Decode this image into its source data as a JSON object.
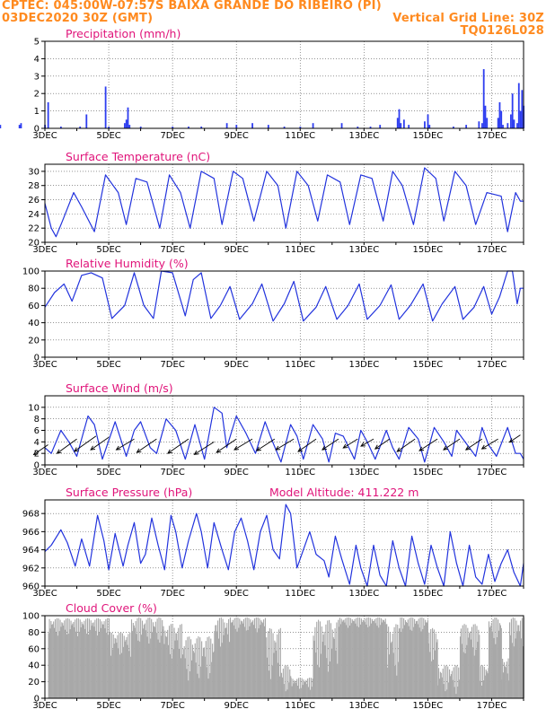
{
  "header": {
    "line1": "CPTEC:   045:00W-07:57S  BAIXA GRANDE DO RIBEIRO (PI)",
    "line2_left": "03DEC2020 30Z (GMT)",
    "line2_right": "Vertical Grid Line: 30Z",
    "line3_right": "TQ0126L028"
  },
  "colors": {
    "header": "#ff8a1f",
    "title": "#e0147a",
    "line": "#2233dd",
    "bar": "#2d3df0",
    "cloud": "#a8a8a8",
    "arrow": "#000000"
  },
  "x_ticks": [
    "3DEC",
    "5DEC",
    "7DEC",
    "9DEC",
    "11DEC",
    "13DEC",
    "15DEC",
    "17DEC"
  ],
  "chart_data": [
    {
      "type": "bar",
      "title": "Precipitation (mm/h)",
      "ylim": [
        0,
        5
      ],
      "yticks": [
        0,
        1,
        2,
        3,
        4,
        5
      ],
      "spikes": [
        [
          0.55,
          0.5
        ],
        [
          0.6,
          0.7
        ],
        [
          0.65,
          0.4
        ],
        [
          0.75,
          0.6
        ],
        [
          0.8,
          0.8
        ],
        [
          0.85,
          3.0
        ],
        [
          0.9,
          0.6
        ],
        [
          0.95,
          0.3
        ],
        [
          1.0,
          0.4
        ],
        [
          1.6,
          0.2
        ],
        [
          2.2,
          0.2
        ],
        [
          2.25,
          0.3
        ],
        [
          3.0,
          0.2
        ],
        [
          3.1,
          1.5
        ],
        [
          3.5,
          0.1
        ],
        [
          4.1,
          0.1
        ],
        [
          4.3,
          0.8
        ],
        [
          4.9,
          2.4
        ],
        [
          5.0,
          0.1
        ],
        [
          5.5,
          0.3
        ],
        [
          5.55,
          0.5
        ],
        [
          5.6,
          1.2
        ],
        [
          5.65,
          0.2
        ],
        [
          6.0,
          0.1
        ],
        [
          7.0,
          0.1
        ],
        [
          7.5,
          0.1
        ],
        [
          7.9,
          0.1
        ],
        [
          8.7,
          0.3
        ],
        [
          9.0,
          0.2
        ],
        [
          9.5,
          0.3
        ],
        [
          10.0,
          0.2
        ],
        [
          10.5,
          0.1
        ],
        [
          11.0,
          0.1
        ],
        [
          11.4,
          0.3
        ],
        [
          12.3,
          0.3
        ],
        [
          12.8,
          0.1
        ],
        [
          13.2,
          0.1
        ],
        [
          13.5,
          0.2
        ],
        [
          14.05,
          0.6
        ],
        [
          14.1,
          1.1
        ],
        [
          14.15,
          0.3
        ],
        [
          14.25,
          0.5
        ],
        [
          14.4,
          0.2
        ],
        [
          14.9,
          0.4
        ],
        [
          15.0,
          0.8
        ],
        [
          15.05,
          0.2
        ],
        [
          15.8,
          0.1
        ],
        [
          16.2,
          0.2
        ],
        [
          16.6,
          0.4
        ],
        [
          16.7,
          0.3
        ],
        [
          16.75,
          3.4
        ],
        [
          16.8,
          1.3
        ],
        [
          16.85,
          0.6
        ],
        [
          17.2,
          0.6
        ],
        [
          17.25,
          1.5
        ],
        [
          17.3,
          1.0
        ],
        [
          17.35,
          0.2
        ],
        [
          17.5,
          0.3
        ],
        [
          17.6,
          0.8
        ],
        [
          17.65,
          2.0
        ],
        [
          17.7,
          0.5
        ],
        [
          17.8,
          0.3
        ],
        [
          17.85,
          2.6
        ],
        [
          17.9,
          1.0
        ],
        [
          17.95,
          2.2
        ],
        [
          18.0,
          1.3
        ]
      ]
    },
    {
      "type": "line",
      "title": "Surface Temperature (nC)",
      "ylim": [
        20,
        31
      ],
      "yticks": [
        20,
        22,
        24,
        26,
        28,
        30
      ],
      "x": [
        3.0,
        3.2,
        3.35,
        3.55,
        3.9,
        4.15,
        4.55,
        4.9,
        5.3,
        5.55,
        5.85,
        6.2,
        6.6,
        6.9,
        7.25,
        7.55,
        7.9,
        8.3,
        8.55,
        8.9,
        9.2,
        9.55,
        9.95,
        10.3,
        10.55,
        10.9,
        11.25,
        11.55,
        11.85,
        12.25,
        12.55,
        12.9,
        13.25,
        13.6,
        13.9,
        14.2,
        14.55,
        14.9,
        15.25,
        15.5,
        15.85,
        16.2,
        16.5,
        16.85,
        17.3,
        17.5,
        17.75,
        17.9,
        18.0
      ],
      "values": [
        25.5,
        22.0,
        20.8,
        23.0,
        27.0,
        25.0,
        21.5,
        29.5,
        27.0,
        22.5,
        29.0,
        28.5,
        22.0,
        29.5,
        27.0,
        22.0,
        30.0,
        29.0,
        22.5,
        30.0,
        29.0,
        23.0,
        30.0,
        28.0,
        22.0,
        30.0,
        28.0,
        23.0,
        29.5,
        28.5,
        22.5,
        29.5,
        29.0,
        23.0,
        30.0,
        28.0,
        22.5,
        30.5,
        29.0,
        23.0,
        30.0,
        28.0,
        22.5,
        27.0,
        26.5,
        21.5,
        27.0,
        25.8,
        25.8
      ]
    },
    {
      "type": "line",
      "title": "Relative Humidity (%)",
      "ylim": [
        0,
        100
      ],
      "yticks": [
        0,
        20,
        40,
        60,
        80,
        100
      ],
      "x": [
        3.0,
        3.3,
        3.6,
        3.85,
        4.15,
        4.45,
        4.8,
        5.1,
        5.5,
        5.8,
        6.1,
        6.4,
        6.65,
        7.0,
        7.4,
        7.65,
        7.9,
        8.2,
        8.5,
        8.8,
        9.1,
        9.5,
        9.8,
        10.15,
        10.5,
        10.8,
        11.1,
        11.5,
        11.8,
        12.15,
        12.5,
        12.85,
        13.1,
        13.5,
        13.85,
        14.1,
        14.45,
        14.85,
        15.15,
        15.45,
        15.85,
        16.1,
        16.45,
        16.75,
        17.0,
        17.25,
        17.5,
        17.65,
        17.8,
        17.9,
        18.0
      ],
      "values": [
        58,
        75,
        85,
        65,
        95,
        98,
        92,
        45,
        60,
        98,
        60,
        45,
        100,
        98,
        48,
        90,
        98,
        45,
        60,
        82,
        44,
        62,
        85,
        42,
        62,
        88,
        42,
        58,
        82,
        44,
        60,
        85,
        44,
        60,
        84,
        44,
        60,
        85,
        42,
        62,
        82,
        44,
        58,
        82,
        50,
        70,
        100,
        100,
        62,
        80,
        80
      ]
    },
    {
      "type": "line",
      "title": "Surface Wind (m/s)",
      "ylim": [
        0,
        12
      ],
      "yticks": [
        0,
        2,
        4,
        6,
        8,
        10
      ],
      "x": [
        3.0,
        3.2,
        3.5,
        3.75,
        4.0,
        4.35,
        4.55,
        4.8,
        5.2,
        5.55,
        5.8,
        6.0,
        6.3,
        6.5,
        6.8,
        7.1,
        7.4,
        7.7,
        8.0,
        8.3,
        8.55,
        8.7,
        9.0,
        9.3,
        9.6,
        9.9,
        10.1,
        10.4,
        10.7,
        10.9,
        11.1,
        11.4,
        11.7,
        11.9,
        12.1,
        12.35,
        12.7,
        12.9,
        13.1,
        13.35,
        13.7,
        13.9,
        14.1,
        14.4,
        14.7,
        14.9,
        15.2,
        15.5,
        15.75,
        15.9,
        16.1,
        16.5,
        16.7,
        16.9,
        17.15,
        17.5,
        17.75,
        17.9,
        18.0
      ],
      "values": [
        3.0,
        2.0,
        6.0,
        4.0,
        1.5,
        8.5,
        7.0,
        1.0,
        7.5,
        1.5,
        6.0,
        7.5,
        3.0,
        2.0,
        8.0,
        6.0,
        1.0,
        7.0,
        1.0,
        10.0,
        9.0,
        3.0,
        8.5,
        5.5,
        2.0,
        7.5,
        4.5,
        0.5,
        7.0,
        5.0,
        1.0,
        7.0,
        4.5,
        0.5,
        5.5,
        5.0,
        1.0,
        6.0,
        4.0,
        1.0,
        6.0,
        3.0,
        1.0,
        6.5,
        4.5,
        0.5,
        6.5,
        4.0,
        1.5,
        6.0,
        4.5,
        1.5,
        6.5,
        3.5,
        1.5,
        6.5,
        2.0,
        2.0,
        1.0
      ],
      "arrows": [
        [
          3.1,
          3.5,
          -16,
          11
        ],
        [
          4.0,
          4.5,
          -22,
          16
        ],
        [
          4.6,
          5.0,
          -24,
          17
        ],
        [
          5.0,
          4.8,
          -20,
          14
        ],
        [
          5.8,
          4.5,
          -20,
          12
        ],
        [
          6.5,
          4.5,
          -22,
          15
        ],
        [
          7.5,
          4.5,
          -23,
          16
        ],
        [
          8.3,
          4.0,
          -22,
          14
        ],
        [
          9.0,
          4.5,
          -22,
          15
        ],
        [
          9.5,
          4.5,
          -20,
          12
        ],
        [
          10.2,
          4.5,
          -20,
          13
        ],
        [
          10.8,
          4.5,
          -20,
          12
        ],
        [
          11.5,
          4.5,
          -20,
          14
        ],
        [
          12.2,
          4.5,
          -18,
          12
        ],
        [
          12.8,
          4.5,
          -16,
          10
        ],
        [
          13.3,
          4.5,
          -14,
          8
        ],
        [
          13.8,
          4.5,
          -16,
          11
        ],
        [
          14.6,
          4.5,
          -20,
          14
        ],
        [
          15.3,
          4.5,
          -20,
          13
        ],
        [
          16.0,
          4.5,
          -18,
          12
        ],
        [
          16.7,
          4.5,
          -18,
          12
        ],
        [
          17.2,
          4.5,
          -18,
          11
        ],
        [
          17.9,
          5.2,
          -12,
          8
        ]
      ]
    },
    {
      "type": "line",
      "title": "Surface Pressure (hPa)",
      "subtitle": "Model Altitude: 411.222  m",
      "ylim": [
        960,
        969.5
      ],
      "yticks": [
        960,
        962,
        964,
        966,
        968
      ],
      "x": [
        3.0,
        3.2,
        3.5,
        3.7,
        3.95,
        4.15,
        4.4,
        4.65,
        4.85,
        5.0,
        5.2,
        5.45,
        5.6,
        5.8,
        6.0,
        6.15,
        6.35,
        6.55,
        6.75,
        6.95,
        7.1,
        7.3,
        7.5,
        7.75,
        7.9,
        8.1,
        8.3,
        8.55,
        8.75,
        8.95,
        9.15,
        9.35,
        9.55,
        9.75,
        9.95,
        10.15,
        10.35,
        10.55,
        10.7,
        10.9,
        11.1,
        11.3,
        11.5,
        11.75,
        11.9,
        12.1,
        12.3,
        12.55,
        12.75,
        12.9,
        13.1,
        13.3,
        13.5,
        13.7,
        13.9,
        14.1,
        14.3,
        14.5,
        14.7,
        14.9,
        15.1,
        15.3,
        15.5,
        15.7,
        15.9,
        16.1,
        16.3,
        16.5,
        16.7,
        16.9,
        17.1,
        17.3,
        17.5,
        17.7,
        17.9,
        18.0
      ],
      "values": [
        963.8,
        964.5,
        966.2,
        964.8,
        962.2,
        965.2,
        962.2,
        967.8,
        965.0,
        961.8,
        965.8,
        962.2,
        964.5,
        967.0,
        962.5,
        963.5,
        967.5,
        964.5,
        961.8,
        967.8,
        966.0,
        962.0,
        965.0,
        968.0,
        966.0,
        962.0,
        967.0,
        964.0,
        961.8,
        966.0,
        967.5,
        965.0,
        961.8,
        966.0,
        967.8,
        964.0,
        963.0,
        969.0,
        968.0,
        962.0,
        964.0,
        966.0,
        963.5,
        962.8,
        961.0,
        965.5,
        963.0,
        960.2,
        964.5,
        962.0,
        960.0,
        964.5,
        961.2,
        960.0,
        965.0,
        962.0,
        960.0,
        965.5,
        962.5,
        960.2,
        964.5,
        962.0,
        960.0,
        966.0,
        962.5,
        960.0,
        964.5,
        961.0,
        960.2,
        963.5,
        960.5,
        962.5,
        964.0,
        961.5,
        960.0,
        962.5
      ]
    },
    {
      "type": "area",
      "title": "Cloud Cover (%)",
      "ylim": [
        0,
        100
      ],
      "yticks": [
        0,
        20,
        40,
        60,
        80,
        100
      ],
      "segments": [
        [
          3.1,
          5.0,
          75,
          97
        ],
        [
          5.0,
          5.7,
          50,
          80
        ],
        [
          5.7,
          6.7,
          65,
          98
        ],
        [
          6.7,
          7.3,
          45,
          90
        ],
        [
          7.3,
          8.3,
          20,
          75
        ],
        [
          8.3,
          8.8,
          60,
          98
        ],
        [
          8.8,
          9.9,
          80,
          98
        ],
        [
          9.9,
          10.4,
          20,
          85
        ],
        [
          10.4,
          10.7,
          5,
          40
        ],
        [
          10.7,
          11.4,
          10,
          25
        ],
        [
          11.4,
          12.2,
          30,
          95
        ],
        [
          12.2,
          13.7,
          85,
          98
        ],
        [
          13.7,
          14.1,
          25,
          90
        ],
        [
          14.1,
          15.0,
          80,
          98
        ],
        [
          15.0,
          15.3,
          40,
          85
        ],
        [
          15.3,
          16.0,
          5,
          40
        ],
        [
          16.0,
          16.6,
          50,
          90
        ],
        [
          16.6,
          16.9,
          15,
          40
        ],
        [
          16.9,
          17.3,
          65,
          98
        ],
        [
          17.3,
          17.55,
          15,
          50
        ],
        [
          17.55,
          18.0,
          60,
          98
        ]
      ]
    }
  ]
}
